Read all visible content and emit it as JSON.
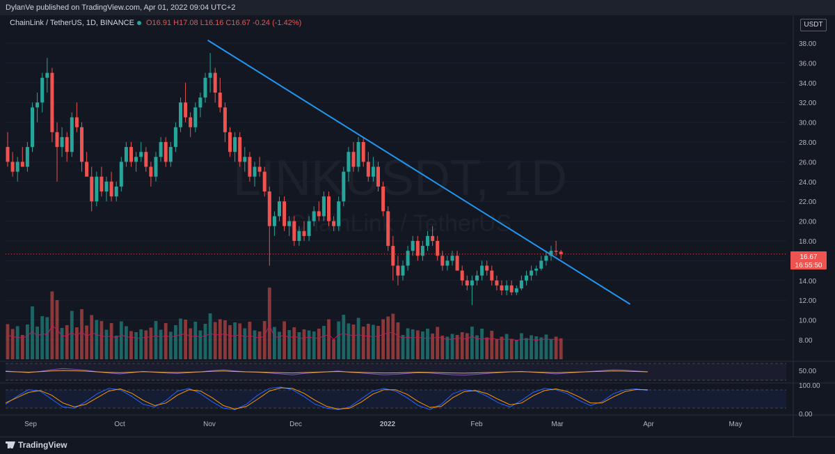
{
  "header": {
    "published_text": "DylanVe published on TradingView.com, Apr 01, 2022 09:04 UTC+2"
  },
  "symbol_bar": {
    "name": "ChainLink / TetherUS, 1D, BINANCE",
    "open": "O16.91",
    "high": "H17.08",
    "low": "L16.16",
    "close": "C16.67",
    "change": "-0.24 (-1.42%)"
  },
  "currency_label": "USDT",
  "watermark": {
    "ticker": "LINKUSDT, 1D",
    "name": "ChainLink / TetherUS"
  },
  "price_tag": {
    "price": "16.67",
    "countdown": "16:55:50"
  },
  "footer": {
    "logo_text": "TradingView"
  },
  "colors": {
    "up": "#26a69a",
    "down": "#ef5350",
    "trendline": "#2196f3",
    "background": "#131722",
    "rsi": "#7e57c2",
    "rsi_ma": "#e9a84a",
    "stoch_k": "#2962ff",
    "stoch_d": "#ff9800",
    "volume_ma": "#c2185b"
  },
  "chart_data": {
    "type": "candlestick",
    "price_axis_ticks": [
      "38.00",
      "36.00",
      "34.00",
      "32.00",
      "30.00",
      "28.00",
      "26.00",
      "24.00",
      "22.00",
      "20.00",
      "18.00",
      "16.00",
      "14.00",
      "12.00",
      "10.00",
      "8.00"
    ],
    "price_range": [
      7,
      39
    ],
    "time_axis_labels": [
      "Sep",
      "Oct",
      "Nov",
      "Dec",
      "2022",
      "Feb",
      "Mar",
      "Apr",
      "May"
    ],
    "candles": [
      {
        "x": "Aug 21",
        "o": 27.5,
        "h": 29.0,
        "l": 25.5,
        "c": 26.0
      },
      {
        "x": "Aug 23",
        "o": 26.0,
        "h": 27.0,
        "l": 24.5,
        "c": 25.0
      },
      {
        "x": "Aug 25",
        "o": 25.0,
        "h": 26.5,
        "l": 24.0,
        "c": 26.0
      },
      {
        "x": "Aug 27",
        "o": 26.0,
        "h": 27.5,
        "l": 25.5,
        "c": 25.5
      },
      {
        "x": "Aug 29",
        "o": 25.5,
        "h": 28.0,
        "l": 25.0,
        "c": 27.5
      },
      {
        "x": "Aug 31",
        "o": 27.5,
        "h": 32.0,
        "l": 27.0,
        "c": 31.5
      },
      {
        "x": "Sep 02",
        "o": 31.5,
        "h": 33.0,
        "l": 30.0,
        "c": 32.0
      },
      {
        "x": "Sep 04",
        "o": 32.0,
        "h": 35.0,
        "l": 31.0,
        "c": 34.5
      },
      {
        "x": "Sep 06",
        "o": 34.5,
        "h": 36.5,
        "l": 33.0,
        "c": 35.0
      },
      {
        "x": "Sep 08",
        "o": 35.0,
        "h": 35.5,
        "l": 28.0,
        "c": 29.0
      },
      {
        "x": "Sep 10",
        "o": 29.0,
        "h": 30.0,
        "l": 24.0,
        "c": 27.5
      },
      {
        "x": "Sep 12",
        "o": 27.5,
        "h": 29.5,
        "l": 26.5,
        "c": 28.5
      },
      {
        "x": "Sep 14",
        "o": 28.5,
        "h": 29.0,
        "l": 26.0,
        "c": 27.0
      },
      {
        "x": "Sep 16",
        "o": 27.0,
        "h": 31.0,
        "l": 26.5,
        "c": 30.5
      },
      {
        "x": "Sep 18",
        "o": 30.5,
        "h": 32.0,
        "l": 29.0,
        "c": 29.5
      },
      {
        "x": "Sep 20",
        "o": 29.5,
        "h": 30.0,
        "l": 25.0,
        "c": 26.0
      },
      {
        "x": "Sep 22",
        "o": 26.0,
        "h": 27.0,
        "l": 24.5,
        "c": 24.5
      },
      {
        "x": "Sep 24",
        "o": 24.5,
        "h": 25.5,
        "l": 21.0,
        "c": 22.0
      },
      {
        "x": "Sep 26",
        "o": 22.0,
        "h": 25.0,
        "l": 21.5,
        "c": 24.5
      },
      {
        "x": "Sep 28",
        "o": 24.5,
        "h": 25.5,
        "l": 22.5,
        "c": 23.0
      },
      {
        "x": "Sep 30",
        "o": 23.0,
        "h": 24.5,
        "l": 22.0,
        "c": 24.0
      },
      {
        "x": "Oct 02",
        "o": 24.0,
        "h": 25.0,
        "l": 22.0,
        "c": 22.5
      },
      {
        "x": "Oct 04",
        "o": 22.5,
        "h": 24.0,
        "l": 22.0,
        "c": 23.5
      },
      {
        "x": "Oct 06",
        "o": 23.5,
        "h": 26.5,
        "l": 23.0,
        "c": 26.0
      },
      {
        "x": "Oct 08",
        "o": 26.0,
        "h": 28.0,
        "l": 25.5,
        "c": 27.5
      },
      {
        "x": "Oct 10",
        "o": 27.5,
        "h": 28.0,
        "l": 25.5,
        "c": 26.0
      },
      {
        "x": "Oct 12",
        "o": 26.0,
        "h": 27.0,
        "l": 25.0,
        "c": 26.5
      },
      {
        "x": "Oct 14",
        "o": 26.5,
        "h": 28.0,
        "l": 26.0,
        "c": 27.0
      },
      {
        "x": "Oct 16",
        "o": 27.0,
        "h": 27.5,
        "l": 25.0,
        "c": 25.5
      },
      {
        "x": "Oct 18",
        "o": 25.5,
        "h": 26.0,
        "l": 23.5,
        "c": 24.5
      },
      {
        "x": "Oct 20",
        "o": 24.5,
        "h": 27.0,
        "l": 24.0,
        "c": 26.5
      },
      {
        "x": "Oct 22",
        "o": 26.5,
        "h": 28.5,
        "l": 26.0,
        "c": 28.0
      },
      {
        "x": "Oct 24",
        "o": 28.0,
        "h": 28.5,
        "l": 25.5,
        "c": 26.0
      },
      {
        "x": "Oct 26",
        "o": 26.0,
        "h": 28.0,
        "l": 25.5,
        "c": 27.5
      },
      {
        "x": "Oct 28",
        "o": 27.5,
        "h": 30.0,
        "l": 27.0,
        "c": 29.5
      },
      {
        "x": "Oct 30",
        "o": 29.5,
        "h": 32.5,
        "l": 29.0,
        "c": 32.0
      },
      {
        "x": "Nov 01",
        "o": 32.0,
        "h": 34.0,
        "l": 30.0,
        "c": 30.5
      },
      {
        "x": "Nov 03",
        "o": 30.5,
        "h": 31.0,
        "l": 28.5,
        "c": 29.5
      },
      {
        "x": "Nov 05",
        "o": 29.5,
        "h": 32.0,
        "l": 29.0,
        "c": 31.5
      },
      {
        "x": "Nov 07",
        "o": 31.5,
        "h": 33.0,
        "l": 30.5,
        "c": 32.5
      },
      {
        "x": "Nov 09",
        "o": 32.5,
        "h": 35.0,
        "l": 32.0,
        "c": 34.5
      },
      {
        "x": "Nov 10",
        "o": 34.5,
        "h": 37.0,
        "l": 33.0,
        "c": 35.0
      },
      {
        "x": "Nov 12",
        "o": 35.0,
        "h": 35.5,
        "l": 32.0,
        "c": 33.0
      },
      {
        "x": "Nov 14",
        "o": 33.0,
        "h": 34.5,
        "l": 31.0,
        "c": 31.5
      },
      {
        "x": "Nov 16",
        "o": 31.5,
        "h": 32.0,
        "l": 28.0,
        "c": 29.0
      },
      {
        "x": "Nov 18",
        "o": 29.0,
        "h": 29.5,
        "l": 26.5,
        "c": 27.0
      },
      {
        "x": "Nov 20",
        "o": 27.0,
        "h": 29.0,
        "l": 26.0,
        "c": 28.5
      },
      {
        "x": "Nov 22",
        "o": 28.5,
        "h": 29.0,
        "l": 25.5,
        "c": 26.0
      },
      {
        "x": "Nov 24",
        "o": 26.0,
        "h": 27.5,
        "l": 25.0,
        "c": 26.5
      },
      {
        "x": "Nov 26",
        "o": 26.5,
        "h": 27.0,
        "l": 24.0,
        "c": 24.5
      },
      {
        "x": "Nov 28",
        "o": 24.5,
        "h": 26.0,
        "l": 23.5,
        "c": 25.5
      },
      {
        "x": "Nov 30",
        "o": 25.5,
        "h": 26.5,
        "l": 24.5,
        "c": 25.0
      },
      {
        "x": "Dec 02",
        "o": 25.0,
        "h": 25.5,
        "l": 22.5,
        "c": 23.0
      },
      {
        "x": "Dec 04",
        "o": 23.0,
        "h": 23.5,
        "l": 15.5,
        "c": 19.5
      },
      {
        "x": "Dec 06",
        "o": 19.5,
        "h": 21.0,
        "l": 18.5,
        "c": 20.5
      },
      {
        "x": "Dec 08",
        "o": 20.5,
        "h": 22.5,
        "l": 20.0,
        "c": 22.0
      },
      {
        "x": "Dec 10",
        "o": 22.0,
        "h": 22.5,
        "l": 19.0,
        "c": 19.5
      },
      {
        "x": "Dec 12",
        "o": 19.5,
        "h": 20.5,
        "l": 18.5,
        "c": 20.0
      },
      {
        "x": "Dec 14",
        "o": 20.0,
        "h": 20.5,
        "l": 17.5,
        "c": 18.0
      },
      {
        "x": "Dec 16",
        "o": 18.0,
        "h": 19.5,
        "l": 17.5,
        "c": 19.0
      },
      {
        "x": "Dec 18",
        "o": 19.0,
        "h": 20.0,
        "l": 18.0,
        "c": 18.5
      },
      {
        "x": "Dec 20",
        "o": 18.5,
        "h": 20.5,
        "l": 18.0,
        "c": 20.0
      },
      {
        "x": "Dec 22",
        "o": 20.0,
        "h": 21.5,
        "l": 19.5,
        "c": 21.0
      },
      {
        "x": "Dec 24",
        "o": 21.0,
        "h": 22.0,
        "l": 20.0,
        "c": 20.5
      },
      {
        "x": "Dec 26",
        "o": 20.5,
        "h": 23.0,
        "l": 20.0,
        "c": 22.5
      },
      {
        "x": "Dec 28",
        "o": 22.5,
        "h": 23.0,
        "l": 19.5,
        "c": 20.0
      },
      {
        "x": "Dec 30",
        "o": 20.0,
        "h": 20.5,
        "l": 19.0,
        "c": 19.5
      },
      {
        "x": "Jan 01",
        "o": 19.5,
        "h": 22.5,
        "l": 19.0,
        "c": 22.0
      },
      {
        "x": "Jan 03",
        "o": 22.0,
        "h": 25.5,
        "l": 21.5,
        "c": 25.0
      },
      {
        "x": "Jan 05",
        "o": 25.0,
        "h": 27.5,
        "l": 24.0,
        "c": 27.0
      },
      {
        "x": "Jan 07",
        "o": 27.0,
        "h": 28.0,
        "l": 25.0,
        "c": 25.5
      },
      {
        "x": "Jan 09",
        "o": 25.5,
        "h": 28.5,
        "l": 25.0,
        "c": 28.0
      },
      {
        "x": "Jan 11",
        "o": 28.0,
        "h": 28.5,
        "l": 25.5,
        "c": 26.0
      },
      {
        "x": "Jan 13",
        "o": 26.0,
        "h": 27.0,
        "l": 24.0,
        "c": 24.5
      },
      {
        "x": "Jan 15",
        "o": 24.5,
        "h": 26.5,
        "l": 24.0,
        "c": 25.5
      },
      {
        "x": "Jan 17",
        "o": 25.5,
        "h": 26.0,
        "l": 23.0,
        "c": 23.5
      },
      {
        "x": "Jan 19",
        "o": 23.5,
        "h": 24.0,
        "l": 20.5,
        "c": 21.0
      },
      {
        "x": "Jan 21",
        "o": 21.0,
        "h": 21.5,
        "l": 17.0,
        "c": 17.5
      },
      {
        "x": "Jan 23",
        "o": 17.5,
        "h": 18.5,
        "l": 14.0,
        "c": 15.5
      },
      {
        "x": "Jan 25",
        "o": 15.5,
        "h": 16.5,
        "l": 13.5,
        "c": 14.5
      },
      {
        "x": "Jan 27",
        "o": 14.5,
        "h": 16.0,
        "l": 14.0,
        "c": 15.5
      },
      {
        "x": "Jan 29",
        "o": 15.5,
        "h": 17.5,
        "l": 15.0,
        "c": 17.0
      },
      {
        "x": "Jan 31",
        "o": 17.0,
        "h": 18.5,
        "l": 16.5,
        "c": 18.0
      },
      {
        "x": "Feb 02",
        "o": 18.0,
        "h": 18.5,
        "l": 16.0,
        "c": 16.5
      },
      {
        "x": "Feb 04",
        "o": 16.5,
        "h": 18.0,
        "l": 16.0,
        "c": 17.5
      },
      {
        "x": "Feb 06",
        "o": 17.5,
        "h": 19.0,
        "l": 17.0,
        "c": 18.5
      },
      {
        "x": "Feb 08",
        "o": 18.5,
        "h": 19.5,
        "l": 17.5,
        "c": 18.0
      },
      {
        "x": "Feb 10",
        "o": 18.0,
        "h": 18.5,
        "l": 16.0,
        "c": 16.5
      },
      {
        "x": "Feb 12",
        "o": 16.5,
        "h": 17.0,
        "l": 15.0,
        "c": 15.5
      },
      {
        "x": "Feb 14",
        "o": 15.5,
        "h": 16.5,
        "l": 15.0,
        "c": 16.0
      },
      {
        "x": "Feb 16",
        "o": 16.0,
        "h": 17.0,
        "l": 15.5,
        "c": 16.5
      },
      {
        "x": "Feb 18",
        "o": 16.5,
        "h": 17.0,
        "l": 15.0,
        "c": 15.0
      },
      {
        "x": "Feb 20",
        "o": 15.0,
        "h": 15.5,
        "l": 13.5,
        "c": 14.0
      },
      {
        "x": "Feb 22",
        "o": 14.0,
        "h": 14.5,
        "l": 13.0,
        "c": 13.5
      },
      {
        "x": "Feb 24",
        "o": 13.5,
        "h": 14.5,
        "l": 11.5,
        "c": 14.0
      },
      {
        "x": "Feb 26",
        "o": 14.0,
        "h": 15.0,
        "l": 13.5,
        "c": 14.5
      },
      {
        "x": "Feb 28",
        "o": 14.5,
        "h": 16.0,
        "l": 14.0,
        "c": 15.5
      },
      {
        "x": "Mar 02",
        "o": 15.5,
        "h": 16.0,
        "l": 14.5,
        "c": 15.0
      },
      {
        "x": "Mar 04",
        "o": 15.0,
        "h": 15.5,
        "l": 13.5,
        "c": 14.0
      },
      {
        "x": "Mar 06",
        "o": 14.0,
        "h": 14.5,
        "l": 13.0,
        "c": 13.5
      },
      {
        "x": "Mar 08",
        "o": 13.5,
        "h": 14.0,
        "l": 12.5,
        "c": 13.0
      },
      {
        "x": "Mar 10",
        "o": 13.0,
        "h": 14.0,
        "l": 12.5,
        "c": 13.5
      },
      {
        "x": "Mar 12",
        "o": 13.5,
        "h": 14.0,
        "l": 12.5,
        "c": 12.8
      },
      {
        "x": "Mar 14",
        "o": 12.8,
        "h": 13.5,
        "l": 12.5,
        "c": 13.2
      },
      {
        "x": "Mar 16",
        "o": 13.2,
        "h": 14.5,
        "l": 13.0,
        "c": 14.0
      },
      {
        "x": "Mar 18",
        "o": 14.0,
        "h": 15.0,
        "l": 13.5,
        "c": 14.5
      },
      {
        "x": "Mar 20",
        "o": 14.5,
        "h": 15.5,
        "l": 14.0,
        "c": 15.0
      },
      {
        "x": "Mar 22",
        "o": 15.0,
        "h": 15.5,
        "l": 14.5,
        "c": 15.2
      },
      {
        "x": "Mar 24",
        "o": 15.2,
        "h": 16.5,
        "l": 15.0,
        "c": 16.0
      },
      {
        "x": "Mar 26",
        "o": 16.0,
        "h": 17.0,
        "l": 15.5,
        "c": 16.5
      },
      {
        "x": "Mar 28",
        "o": 16.5,
        "h": 17.5,
        "l": 16.0,
        "c": 17.0
      },
      {
        "x": "Mar 30",
        "o": 17.0,
        "h": 18.0,
        "l": 16.5,
        "c": 16.9
      },
      {
        "x": "Apr 01",
        "o": 16.91,
        "h": 17.08,
        "l": 16.16,
        "c": 16.67
      }
    ],
    "trendline": {
      "from": {
        "x": "Nov 10",
        "y": 38.3
      },
      "to": {
        "x": "Apr 30",
        "y": 11.6
      }
    },
    "current_price_line": 16.67,
    "rsi": {
      "axis_label": "50.00",
      "values": [
        52,
        50,
        48,
        51,
        55,
        58,
        56,
        54,
        50,
        47,
        45,
        48,
        51,
        49,
        47,
        46,
        48,
        50,
        53,
        55,
        52,
        50,
        49,
        47,
        45,
        43,
        46,
        48,
        50,
        52,
        49,
        47,
        45,
        43,
        44,
        46,
        48,
        47,
        45,
        43,
        42,
        44,
        46,
        48,
        50,
        51,
        49,
        47,
        45,
        47,
        49,
        51,
        53,
        55,
        54,
        52,
        50
      ]
    },
    "stoch": {
      "axis_labels": [
        "100.00",
        "0.00"
      ],
      "k": [
        30,
        60,
        85,
        80,
        50,
        20,
        15,
        40,
        70,
        90,
        85,
        60,
        30,
        20,
        45,
        80,
        90,
        70,
        40,
        15,
        10,
        30,
        65,
        90,
        95,
        85,
        60,
        30,
        15,
        10,
        20,
        50,
        80,
        90,
        80,
        55,
        25,
        10,
        30,
        70,
        85,
        80,
        60,
        35,
        20,
        45,
        75,
        90,
        85,
        70,
        45,
        25,
        40,
        70,
        85,
        88,
        82
      ],
      "d": [
        35,
        55,
        75,
        82,
        65,
        35,
        20,
        30,
        55,
        80,
        88,
        72,
        45,
        25,
        35,
        65,
        85,
        80,
        55,
        25,
        12,
        22,
        50,
        80,
        92,
        90,
        72,
        45,
        22,
        12,
        15,
        38,
        68,
        85,
        85,
        68,
        40,
        18,
        22,
        55,
        78,
        82,
        70,
        48,
        28,
        35,
        62,
        82,
        88,
        78,
        58,
        35,
        35,
        58,
        78,
        86,
        85
      ]
    }
  }
}
